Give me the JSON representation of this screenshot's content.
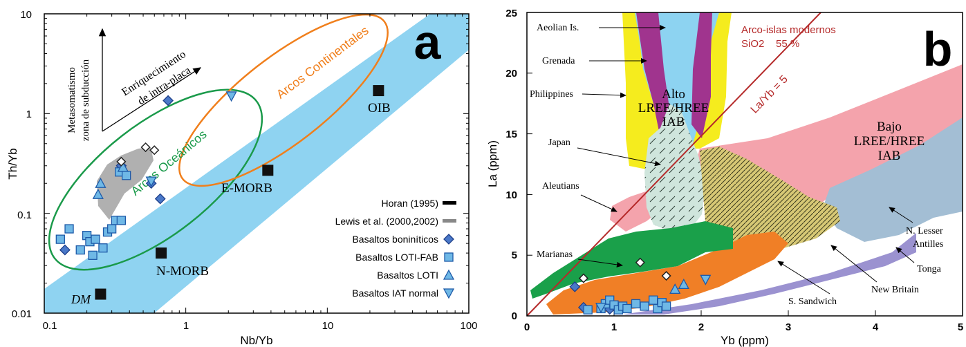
{
  "chart_data": [
    {
      "type": "scatter",
      "panel_label": "a",
      "xlabel": "Nb/Yb",
      "ylabel": "Th/Yb",
      "xscale": "log",
      "yscale": "log",
      "xlim": [
        0.1,
        100
      ],
      "ylim": [
        0.01,
        10
      ],
      "xticks": [
        "0.1",
        "1",
        "10",
        "100"
      ],
      "yticks": [
        "0.01",
        "0.1",
        "1",
        "10"
      ],
      "regions": [
        {
          "label": "Arcos Oceánicos",
          "color": "#1a9a4a"
        },
        {
          "label": "Arcos Continentales",
          "color": "#f07f1c"
        }
      ],
      "arrow_labels": {
        "subduction": [
          "Metasomatismo",
          "zona de subducción"
        ],
        "intraplate": [
          "Enriquecimiento",
          "de intra-placa"
        ]
      },
      "reference_points": [
        {
          "label": "DM",
          "x": 0.25,
          "y": 0.0155
        },
        {
          "label": "N-MORB",
          "x": 0.67,
          "y": 0.04
        },
        {
          "label": "E-MORB",
          "x": 3.8,
          "y": 0.27
        },
        {
          "label": "OIB",
          "x": 23,
          "y": 1.7
        }
      ],
      "legend": {
        "placement": "bottom-right",
        "items": [
          {
            "label": "Horan (1995)",
            "marker": "black-dash"
          },
          {
            "label": "Lewis et al. (2000,2002)",
            "marker": "gray-dash"
          },
          {
            "label": "Basaltos boniníticos",
            "marker": "diamond"
          },
          {
            "label": "Basaltos LOTI-FAB",
            "marker": "square"
          },
          {
            "label": "Basaltos LOTI",
            "marker": "triangle-up"
          },
          {
            "label": "Basaltos IAT normal",
            "marker": "triangle-down"
          }
        ]
      },
      "series": [
        {
          "name": "Basaltos boniníticos",
          "points": [
            [
              0.14,
              0.043
            ],
            [
              0.35,
              0.3
            ],
            [
              0.75,
              1.35
            ],
            [
              0.66,
              0.14
            ],
            [
              0.57,
              0.2
            ]
          ]
        },
        {
          "name": "Basaltos LOTI-FAB",
          "points": [
            [
              0.13,
              0.055
            ],
            [
              0.15,
              0.07
            ],
            [
              0.18,
              0.043
            ],
            [
              0.2,
              0.06
            ],
            [
              0.21,
              0.052
            ],
            [
              0.22,
              0.038
            ],
            [
              0.23,
              0.055
            ],
            [
              0.26,
              0.045
            ],
            [
              0.28,
              0.065
            ],
            [
              0.3,
              0.07
            ],
            [
              0.32,
              0.085
            ],
            [
              0.35,
              0.085
            ],
            [
              0.34,
              0.26
            ],
            [
              0.38,
              0.24
            ]
          ]
        },
        {
          "name": "Basaltos LOTI",
          "points": [
            [
              0.25,
              0.2
            ],
            [
              0.24,
              0.155
            ],
            [
              0.36,
              0.29
            ]
          ]
        },
        {
          "name": "Basaltos IAT normal",
          "points": [
            [
              2.1,
              1.5
            ],
            [
              0.57,
              0.21
            ]
          ]
        },
        {
          "name": "Lewis et al. (2000,2002)",
          "points": [
            [
              0.52,
              0.46
            ],
            [
              0.6,
              0.43
            ],
            [
              0.35,
              0.33
            ]
          ]
        }
      ]
    },
    {
      "type": "scatter",
      "panel_label": "b",
      "xlabel": "Yb (ppm)",
      "ylabel": "La (ppm)",
      "xlim": [
        0,
        5
      ],
      "ylim": [
        0,
        25
      ],
      "xticks": [
        "0",
        "1",
        "2",
        "3",
        "4",
        "5"
      ],
      "yticks": [
        "0",
        "5",
        "10",
        "15",
        "20",
        "25"
      ],
      "ratio_line": {
        "label": "La/Yb = 5",
        "slope": 5
      },
      "annotation": [
        "Arco-islas modernos",
        "SiO2    55 %"
      ],
      "region_labels": {
        "alto": [
          "Alto",
          "LREE/HREE",
          "IAB"
        ],
        "bajo": [
          "Bajo",
          "LREE/HREE",
          "IAB"
        ]
      },
      "arc_labels": [
        "Aeolian Is.",
        "Grenada",
        "Philippines",
        "Japan",
        "Aleutians",
        "Marianas",
        "S. Sandwich",
        "New Britain",
        "Tonga",
        "N. Lesser",
        "Antilles"
      ],
      "series": [
        {
          "name": "Basaltos boniníticos",
          "points": [
            [
              0.55,
              2.4
            ],
            [
              0.65,
              0.7
            ],
            [
              0.95,
              0.55
            ]
          ]
        },
        {
          "name": "Basaltos LOTI-FAB",
          "points": [
            [
              0.7,
              0.5
            ],
            [
              0.85,
              0.6
            ],
            [
              0.9,
              1.0
            ],
            [
              0.95,
              1.3
            ],
            [
              1.0,
              0.9
            ],
            [
              1.05,
              0.5
            ],
            [
              1.1,
              0.8
            ],
            [
              1.15,
              0.6
            ],
            [
              1.25,
              1.0
            ],
            [
              1.35,
              0.8
            ],
            [
              1.45,
              1.3
            ],
            [
              1.5,
              0.6
            ],
            [
              1.55,
              1.1
            ],
            [
              1.6,
              0.8
            ]
          ]
        },
        {
          "name": "Basaltos LOTI",
          "points": [
            [
              1.7,
              2.2
            ],
            [
              1.8,
              2.6
            ]
          ]
        },
        {
          "name": "Basaltos IAT normal",
          "points": [
            [
              2.05,
              3.0
            ],
            [
              0.85,
              0.7
            ]
          ]
        },
        {
          "name": "Lewis et al. (2000,2002)",
          "points": [
            [
              0.65,
              3.1
            ],
            [
              1.3,
              4.4
            ],
            [
              1.6,
              3.3
            ]
          ]
        }
      ]
    }
  ]
}
